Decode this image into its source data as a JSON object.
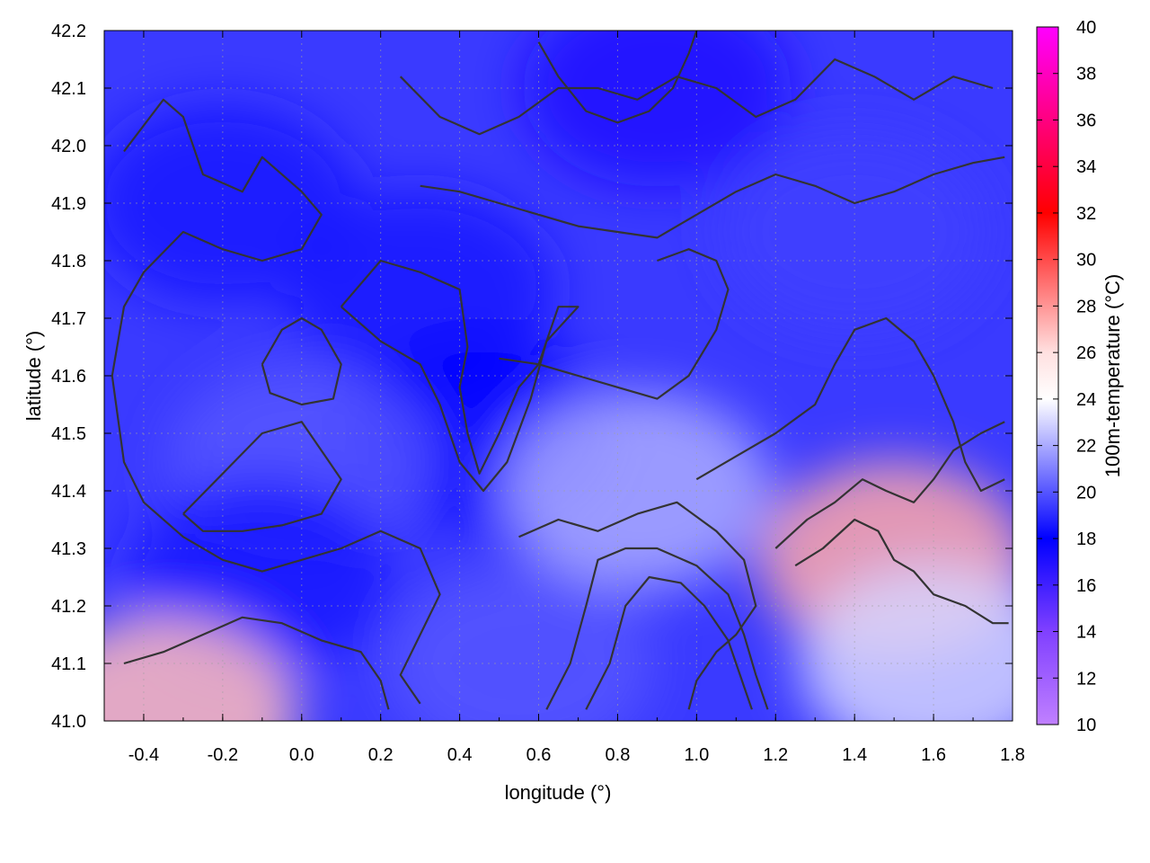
{
  "chart_data": {
    "type": "heatmap",
    "title": "",
    "xlabel": "longitude (°)",
    "ylabel": "latitude (°)",
    "colorbar_label": "100m-temperature (°C)",
    "xlim": [
      -0.5,
      1.8
    ],
    "ylim": [
      41.0,
      42.2
    ],
    "x_ticks": [
      "-0.4",
      "-0.2",
      "0.0",
      "0.2",
      "0.4",
      "0.6",
      "0.8",
      "1.0",
      "1.2",
      "1.4",
      "1.6",
      "1.8"
    ],
    "y_ticks": [
      "41.0",
      "41.1",
      "41.2",
      "41.3",
      "41.4",
      "41.5",
      "41.6",
      "41.7",
      "41.8",
      "41.9",
      "42.0",
      "42.1",
      "42.2"
    ],
    "colorbar_range": [
      10,
      40
    ],
    "colorbar_ticks": [
      "10",
      "12",
      "14",
      "16",
      "18",
      "20",
      "22",
      "24",
      "26",
      "28",
      "30",
      "32",
      "34",
      "36",
      "38",
      "40"
    ],
    "colormap": [
      {
        "value": 10,
        "color": "#c080ff"
      },
      {
        "value": 14,
        "color": "#8040ff"
      },
      {
        "value": 18,
        "color": "#0000ff"
      },
      {
        "value": 24,
        "color": "#ffffff"
      },
      {
        "value": 26,
        "color": "#ffe0e0"
      },
      {
        "value": 32,
        "color": "#ff0000"
      },
      {
        "value": 36,
        "color": "#ff0080"
      },
      {
        "value": 40,
        "color": "#ff00ff"
      }
    ],
    "grid": true,
    "regions": [
      {
        "lon": 0.3,
        "lat": 41.75,
        "value": 18.5
      },
      {
        "lon": -0.2,
        "lat": 41.9,
        "value": 18.5
      },
      {
        "lon": 0.45,
        "lat": 41.5,
        "value": 18
      },
      {
        "lon": 0.0,
        "lat": 41.45,
        "value": 20
      },
      {
        "lon": -0.1,
        "lat": 41.25,
        "value": 18.5
      },
      {
        "lon": 0.9,
        "lat": 42.1,
        "value": 17
      },
      {
        "lon": 0.85,
        "lat": 41.4,
        "value": 22
      },
      {
        "lon": 1.5,
        "lat": 41.28,
        "value": 27.5
      },
      {
        "lon": 1.6,
        "lat": 41.1,
        "value": 23
      },
      {
        "lon": 1.4,
        "lat": 41.85,
        "value": 19.5
      },
      {
        "lon": 0.55,
        "lat": 41.1,
        "value": 20
      },
      {
        "lon": -0.35,
        "lat": 41.01,
        "value": 27
      }
    ],
    "contours": [
      [
        [
          -0.45,
          41.99
        ],
        [
          -0.35,
          42.08
        ],
        [
          -0.3,
          42.05
        ],
        [
          -0.25,
          41.95
        ],
        [
          -0.15,
          41.92
        ],
        [
          -0.1,
          41.98
        ],
        [
          0.0,
          41.92
        ],
        [
          0.05,
          41.88
        ],
        [
          0.0,
          41.82
        ],
        [
          -0.1,
          41.8
        ],
        [
          -0.2,
          41.82
        ],
        [
          -0.3,
          41.85
        ],
        [
          -0.4,
          41.78
        ],
        [
          -0.45,
          41.72
        ],
        [
          -0.48,
          41.6
        ],
        [
          -0.45,
          41.45
        ],
        [
          -0.4,
          41.38
        ],
        [
          -0.3,
          41.32
        ],
        [
          -0.2,
          41.28
        ],
        [
          -0.1,
          41.26
        ],
        [
          0.0,
          41.28
        ],
        [
          0.1,
          41.3
        ],
        [
          0.2,
          41.33
        ],
        [
          0.3,
          41.3
        ],
        [
          0.35,
          41.22
        ],
        [
          0.3,
          41.15
        ],
        [
          0.25,
          41.08
        ],
        [
          0.3,
          41.03
        ]
      ],
      [
        [
          -0.3,
          41.36
        ],
        [
          -0.2,
          41.43
        ],
        [
          -0.1,
          41.5
        ],
        [
          0.0,
          41.52
        ],
        [
          0.05,
          41.47
        ],
        [
          0.1,
          41.42
        ],
        [
          0.05,
          41.36
        ],
        [
          -0.05,
          41.34
        ],
        [
          -0.15,
          41.33
        ],
        [
          -0.25,
          41.33
        ],
        [
          -0.3,
          41.36
        ]
      ],
      [
        [
          -0.1,
          41.62
        ],
        [
          -0.05,
          41.68
        ],
        [
          0.0,
          41.7
        ],
        [
          0.05,
          41.68
        ],
        [
          0.1,
          41.62
        ],
        [
          0.08,
          41.56
        ],
        [
          0.0,
          41.55
        ],
        [
          -0.08,
          41.57
        ],
        [
          -0.1,
          41.62
        ]
      ],
      [
        [
          0.1,
          41.72
        ],
        [
          0.2,
          41.8
        ],
        [
          0.3,
          41.78
        ],
        [
          0.4,
          41.75
        ],
        [
          0.42,
          41.65
        ],
        [
          0.4,
          41.58
        ],
        [
          0.42,
          41.5
        ],
        [
          0.45,
          41.43
        ],
        [
          0.5,
          41.5
        ],
        [
          0.55,
          41.58
        ],
        [
          0.6,
          41.62
        ],
        [
          0.65,
          41.72
        ],
        [
          0.7,
          41.72
        ],
        [
          0.62,
          41.66
        ],
        [
          0.58,
          41.56
        ],
        [
          0.52,
          41.45
        ],
        [
          0.46,
          41.4
        ],
        [
          0.4,
          41.45
        ],
        [
          0.35,
          41.55
        ],
        [
          0.3,
          41.62
        ],
        [
          0.2,
          41.66
        ],
        [
          0.1,
          41.72
        ]
      ],
      [
        [
          0.55,
          41.32
        ],
        [
          0.65,
          41.35
        ],
        [
          0.75,
          41.33
        ],
        [
          0.85,
          41.36
        ],
        [
          0.95,
          41.38
        ],
        [
          1.05,
          41.33
        ],
        [
          1.12,
          41.28
        ],
        [
          1.15,
          41.2
        ],
        [
          1.1,
          41.15
        ],
        [
          1.05,
          41.12
        ],
        [
          1.0,
          41.07
        ],
        [
          0.98,
          41.02
        ]
      ],
      [
        [
          0.62,
          41.02
        ],
        [
          0.68,
          41.1
        ],
        [
          0.72,
          41.2
        ],
        [
          0.75,
          41.28
        ],
        [
          0.82,
          41.3
        ],
        [
          0.9,
          41.3
        ],
        [
          1.0,
          41.27
        ],
        [
          1.08,
          41.22
        ],
        [
          1.12,
          41.15
        ],
        [
          1.15,
          41.08
        ],
        [
          1.18,
          41.02
        ]
      ],
      [
        [
          0.72,
          41.02
        ],
        [
          0.78,
          41.1
        ],
        [
          0.82,
          41.2
        ],
        [
          0.88,
          41.25
        ],
        [
          0.96,
          41.24
        ],
        [
          1.02,
          41.2
        ],
        [
          1.08,
          41.14
        ],
        [
          1.12,
          41.06
        ],
        [
          1.14,
          41.02
        ]
      ],
      [
        [
          1.0,
          41.42
        ],
        [
          1.1,
          41.46
        ],
        [
          1.2,
          41.5
        ],
        [
          1.3,
          41.55
        ],
        [
          1.35,
          41.62
        ],
        [
          1.4,
          41.68
        ],
        [
          1.48,
          41.7
        ],
        [
          1.55,
          41.66
        ],
        [
          1.6,
          41.6
        ],
        [
          1.65,
          41.52
        ],
        [
          1.68,
          41.45
        ],
        [
          1.72,
          41.4
        ],
        [
          1.78,
          41.42
        ]
      ],
      [
        [
          1.2,
          41.3
        ],
        [
          1.28,
          41.35
        ],
        [
          1.35,
          41.38
        ],
        [
          1.42,
          41.42
        ],
        [
          1.48,
          41.4
        ],
        [
          1.55,
          41.38
        ],
        [
          1.6,
          41.42
        ],
        [
          1.65,
          41.47
        ],
        [
          1.72,
          41.5
        ],
        [
          1.78,
          41.52
        ]
      ],
      [
        [
          1.25,
          41.27
        ],
        [
          1.32,
          41.3
        ],
        [
          1.4,
          41.35
        ],
        [
          1.46,
          41.33
        ],
        [
          1.5,
          41.28
        ],
        [
          1.55,
          41.26
        ],
        [
          1.6,
          41.22
        ],
        [
          1.68,
          41.2
        ],
        [
          1.75,
          41.17
        ],
        [
          1.79,
          41.17
        ]
      ],
      [
        [
          0.3,
          41.93
        ],
        [
          0.4,
          41.92
        ],
        [
          0.5,
          41.9
        ],
        [
          0.6,
          41.88
        ],
        [
          0.7,
          41.86
        ],
        [
          0.8,
          41.85
        ],
        [
          0.9,
          41.84
        ],
        [
          1.0,
          41.88
        ],
        [
          1.1,
          41.92
        ],
        [
          1.2,
          41.95
        ],
        [
          1.3,
          41.93
        ],
        [
          1.4,
          41.9
        ],
        [
          1.5,
          41.92
        ],
        [
          1.6,
          41.95
        ],
        [
          1.7,
          41.97
        ],
        [
          1.78,
          41.98
        ]
      ],
      [
        [
          0.25,
          42.12
        ],
        [
          0.35,
          42.05
        ],
        [
          0.45,
          42.02
        ],
        [
          0.55,
          42.05
        ],
        [
          0.65,
          42.1
        ],
        [
          0.75,
          42.1
        ],
        [
          0.85,
          42.08
        ],
        [
          0.95,
          42.12
        ],
        [
          1.05,
          42.1
        ],
        [
          1.15,
          42.05
        ],
        [
          1.25,
          42.08
        ],
        [
          1.35,
          42.15
        ],
        [
          1.45,
          42.12
        ],
        [
          1.55,
          42.08
        ],
        [
          1.65,
          42.12
        ],
        [
          1.75,
          42.1
        ]
      ],
      [
        [
          0.6,
          42.18
        ],
        [
          0.65,
          42.12
        ],
        [
          0.72,
          42.06
        ],
        [
          0.8,
          42.04
        ],
        [
          0.88,
          42.06
        ],
        [
          0.94,
          42.1
        ],
        [
          0.98,
          42.16
        ],
        [
          1.0,
          42.2
        ]
      ],
      [
        [
          -0.45,
          41.1
        ],
        [
          -0.35,
          41.12
        ],
        [
          -0.25,
          41.15
        ],
        [
          -0.15,
          41.18
        ],
        [
          -0.05,
          41.17
        ],
        [
          0.05,
          41.14
        ],
        [
          0.15,
          41.12
        ],
        [
          0.2,
          41.07
        ],
        [
          0.22,
          41.02
        ]
      ],
      [
        [
          0.5,
          41.63
        ],
        [
          0.6,
          41.62
        ],
        [
          0.7,
          41.6
        ],
        [
          0.8,
          41.58
        ],
        [
          0.9,
          41.56
        ],
        [
          0.98,
          41.6
        ],
        [
          1.05,
          41.68
        ],
        [
          1.08,
          41.75
        ],
        [
          1.05,
          41.8
        ],
        [
          0.98,
          41.82
        ],
        [
          0.9,
          41.8
        ]
      ]
    ]
  }
}
